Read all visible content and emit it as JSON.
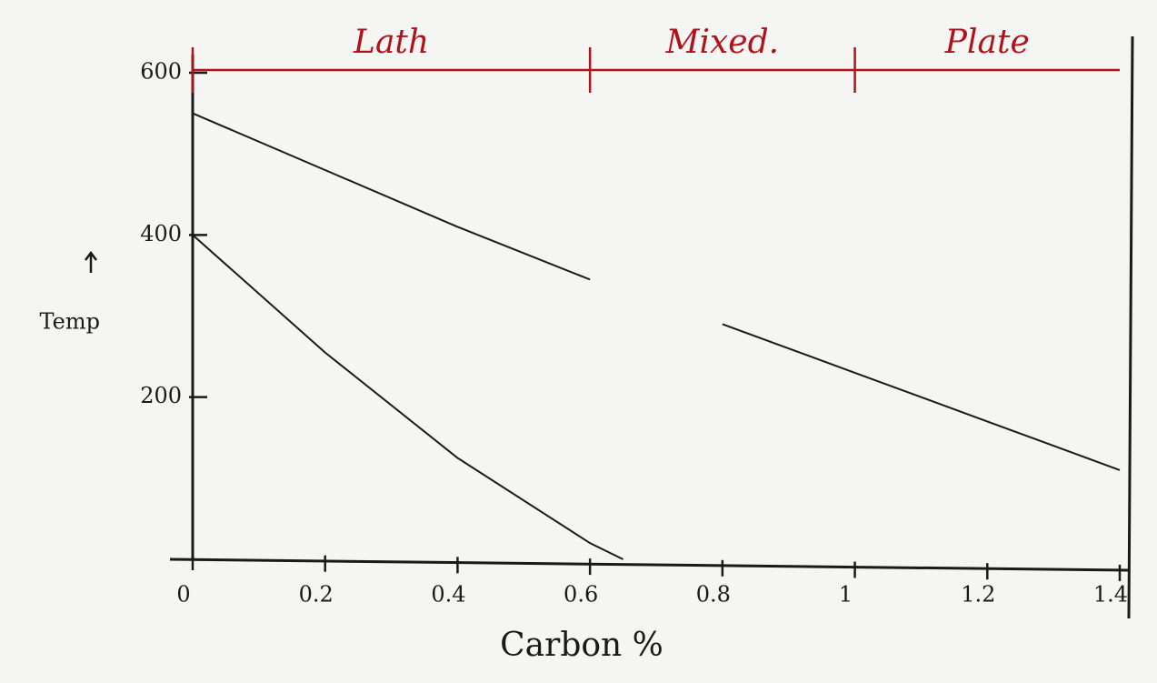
{
  "chart_data": {
    "type": "line",
    "x_label": "Carbon %",
    "y_label": "Temp",
    "xlim": [
      0,
      1.4
    ],
    "ylim": [
      0,
      600
    ],
    "xticks": [
      0,
      0.2,
      0.4,
      0.6,
      0.8,
      1,
      1.2,
      1.4
    ],
    "yticks": [
      200,
      400,
      600
    ],
    "x": [
      0,
      0.2,
      0.4,
      0.6,
      0.65,
      0.8,
      1.0,
      1.2,
      1.4
    ],
    "series": [
      {
        "color": "#1a1a1a",
        "values": [
          550,
          480,
          410,
          345,
          null,
          290,
          230,
          170,
          110
        ]
      },
      {
        "color": "#1a1a1a",
        "values": [
          400,
          255,
          125,
          20,
          0,
          null,
          null,
          null,
          null
        ]
      }
    ],
    "regions": [
      {
        "label": "Lath",
        "from": 0,
        "to": 0.6
      },
      {
        "label": "Mixed.",
        "from": 0.6,
        "to": 1.0
      },
      {
        "label": "Plate",
        "from": 1.0,
        "to": 1.4
      }
    ],
    "region_color": "#b0121b"
  }
}
